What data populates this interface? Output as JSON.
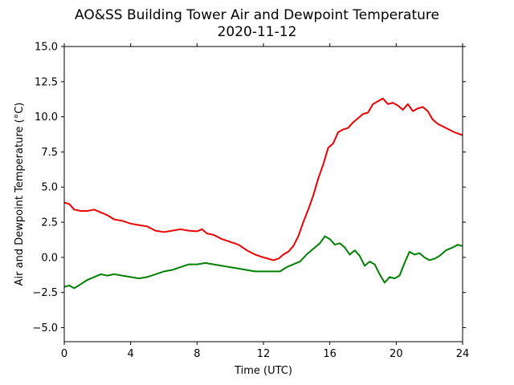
{
  "chart_data": {
    "type": "line",
    "title": "AO&SS Building Tower Air and Dewpoint Temperature",
    "subtitle": "2020-11-12",
    "xlabel": "Time (UTC)",
    "ylabel": "Air and Dewpoint Temperature (°C)",
    "xlim": [
      0,
      24
    ],
    "ylim": [
      -6,
      15
    ],
    "xticks": [
      0,
      4,
      8,
      12,
      16,
      20,
      24
    ],
    "xtick_labels": [
      "0",
      "4",
      "8",
      "12",
      "16",
      "20",
      "24"
    ],
    "yticks": [
      -5,
      -2.5,
      0,
      2.5,
      5,
      7.5,
      10,
      12.5,
      15
    ],
    "ytick_labels": [
      "−5.0",
      "−2.5",
      "0.0",
      "2.5",
      "5.0",
      "7.5",
      "10.0",
      "12.5",
      "15.0"
    ],
    "grid": false,
    "legend": "none",
    "series": [
      {
        "color": "#ee0000",
        "x": [
          0,
          0.3,
          0.6,
          1.0,
          1.4,
          1.8,
          2.2,
          2.6,
          3.0,
          3.5,
          4.0,
          4.5,
          5.0,
          5.5,
          6.0,
          6.5,
          7.0,
          7.5,
          8.0,
          8.3,
          8.6,
          9.0,
          9.5,
          10.0,
          10.5,
          11.0,
          11.5,
          12.0,
          12.3,
          12.6,
          12.9,
          13.2,
          13.5,
          13.8,
          14.1,
          14.4,
          14.7,
          15.0,
          15.3,
          15.6,
          15.9,
          16.2,
          16.5,
          16.8,
          17.1,
          17.4,
          17.7,
          18.0,
          18.3,
          18.6,
          18.9,
          19.2,
          19.5,
          19.8,
          20.1,
          20.4,
          20.7,
          21.0,
          21.3,
          21.6,
          21.9,
          22.2,
          22.5,
          23.0,
          23.5,
          24.0
        ],
        "values": [
          3.9,
          3.8,
          3.4,
          3.3,
          3.3,
          3.4,
          3.2,
          3.0,
          2.7,
          2.6,
          2.4,
          2.3,
          2.2,
          1.9,
          1.8,
          1.9,
          2.0,
          1.9,
          1.85,
          2.0,
          1.7,
          1.6,
          1.3,
          1.1,
          0.9,
          0.5,
          0.2,
          0.0,
          -0.1,
          -0.2,
          -0.1,
          0.2,
          0.4,
          0.8,
          1.5,
          2.5,
          3.4,
          4.4,
          5.6,
          6.6,
          7.8,
          8.1,
          8.9,
          9.1,
          9.2,
          9.6,
          9.9,
          10.2,
          10.3,
          10.9,
          11.1,
          11.3,
          10.9,
          11.0,
          10.8,
          10.5,
          10.9,
          10.4,
          10.6,
          10.7,
          10.4,
          9.8,
          9.5,
          9.2,
          8.9,
          8.7
        ]
      },
      {
        "color": "#008000",
        "x": [
          0,
          0.3,
          0.6,
          1.0,
          1.4,
          1.8,
          2.2,
          2.6,
          3.0,
          3.5,
          4.0,
          4.5,
          5.0,
          5.5,
          6.0,
          6.5,
          7.0,
          7.5,
          8.0,
          8.5,
          9.0,
          9.5,
          10.0,
          10.5,
          11.0,
          11.5,
          12.0,
          12.5,
          13.0,
          13.4,
          13.8,
          14.2,
          14.6,
          15.0,
          15.4,
          15.7,
          16.0,
          16.3,
          16.6,
          16.9,
          17.2,
          17.5,
          17.8,
          18.1,
          18.4,
          18.7,
          19.0,
          19.3,
          19.6,
          19.9,
          20.2,
          20.5,
          20.8,
          21.1,
          21.4,
          21.7,
          22.0,
          22.3,
          22.6,
          23.0,
          23.4,
          23.7,
          24.0
        ],
        "values": [
          -2.1,
          -2.0,
          -2.2,
          -1.9,
          -1.6,
          -1.4,
          -1.2,
          -1.3,
          -1.2,
          -1.3,
          -1.4,
          -1.5,
          -1.4,
          -1.2,
          -1.0,
          -0.9,
          -0.7,
          -0.5,
          -0.5,
          -0.4,
          -0.5,
          -0.6,
          -0.7,
          -0.8,
          -0.9,
          -1.0,
          -1.0,
          -1.0,
          -1.0,
          -0.7,
          -0.5,
          -0.3,
          0.2,
          0.6,
          1.0,
          1.5,
          1.3,
          0.9,
          1.0,
          0.7,
          0.2,
          0.5,
          0.1,
          -0.6,
          -0.3,
          -0.5,
          -1.2,
          -1.8,
          -1.4,
          -1.5,
          -1.3,
          -0.4,
          0.4,
          0.2,
          0.3,
          0.0,
          -0.2,
          -0.1,
          0.1,
          0.5,
          0.7,
          0.9,
          0.8
        ]
      }
    ]
  }
}
